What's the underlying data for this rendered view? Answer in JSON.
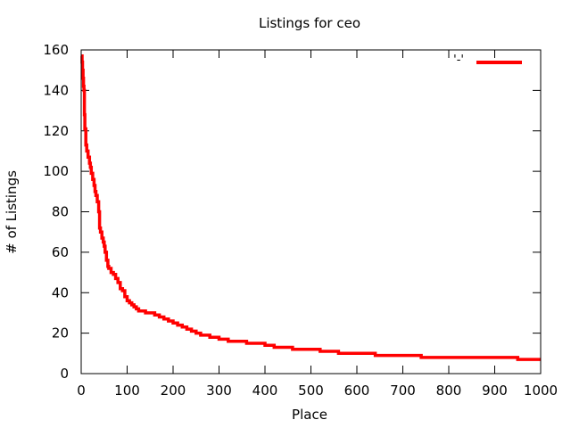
{
  "chart_data": {
    "type": "line",
    "title": "Listings for ceo",
    "xlabel": "Place",
    "ylabel": "# of Listings",
    "xlim": [
      0,
      1000
    ],
    "ylim": [
      0,
      160
    ],
    "xticks": [
      0,
      100,
      200,
      300,
      400,
      500,
      600,
      700,
      800,
      900,
      1000
    ],
    "yticks": [
      0,
      20,
      40,
      60,
      80,
      100,
      120,
      140,
      160
    ],
    "grid": false,
    "legend_position": "top-right",
    "series": [
      {
        "name": "'-'",
        "color": "#ff0000",
        "x": [
          1,
          2,
          3,
          4,
          5,
          6,
          7,
          8,
          10,
          12,
          15,
          18,
          20,
          22,
          25,
          28,
          30,
          32,
          35,
          38,
          40,
          42,
          45,
          48,
          50,
          52,
          55,
          58,
          60,
          65,
          70,
          75,
          80,
          85,
          90,
          95,
          100,
          105,
          110,
          115,
          120,
          125,
          130,
          140,
          150,
          160,
          170,
          180,
          190,
          200,
          210,
          220,
          230,
          240,
          250,
          260,
          270,
          280,
          290,
          300,
          320,
          340,
          360,
          380,
          400,
          420,
          440,
          460,
          480,
          500,
          520,
          540,
          560,
          580,
          600,
          620,
          640,
          660,
          680,
          700,
          720,
          740,
          760,
          800,
          850,
          900,
          950,
          1000
        ],
        "y": [
          157,
          154,
          150,
          146,
          142,
          140,
          128,
          121,
          113,
          110,
          107,
          104,
          102,
          99,
          96,
          93,
          90,
          88,
          85,
          80,
          72,
          70,
          67,
          65,
          63,
          60,
          56,
          53,
          52,
          50,
          49,
          47,
          45,
          42,
          41,
          38,
          36,
          35,
          34,
          33,
          32,
          31,
          31,
          30,
          30,
          29,
          28,
          27,
          26,
          25,
          24,
          23,
          22,
          21,
          20,
          19,
          19,
          18,
          18,
          17,
          16,
          16,
          15,
          15,
          14,
          13,
          13,
          12,
          12,
          12,
          11,
          11,
          10,
          10,
          10,
          10,
          9,
          9,
          9,
          9,
          9,
          8,
          8,
          8,
          8,
          8,
          7,
          7
        ]
      }
    ]
  }
}
